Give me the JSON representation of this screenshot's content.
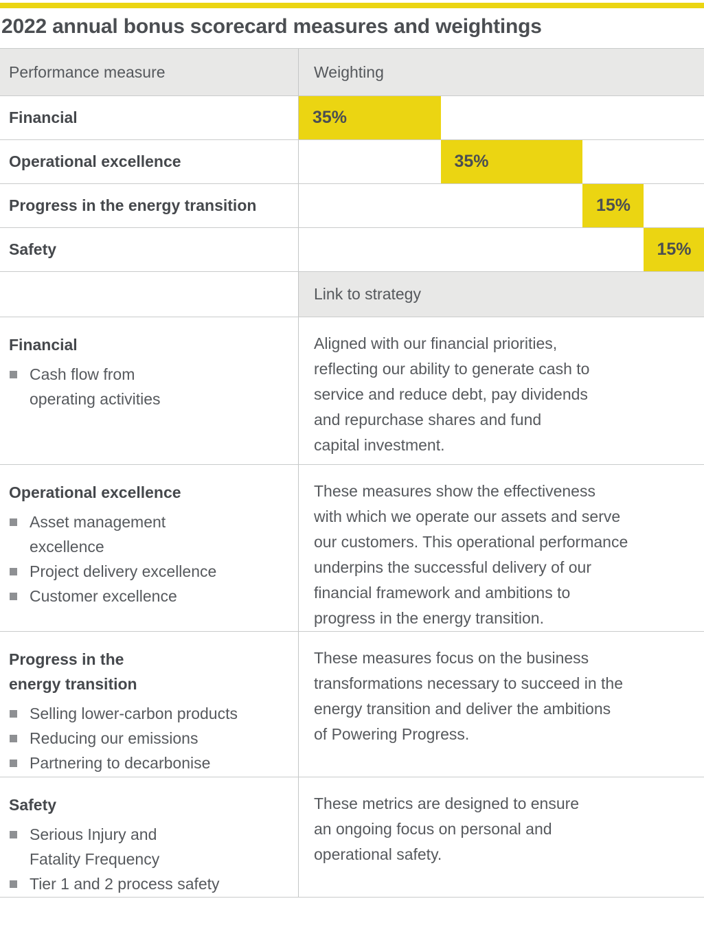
{
  "title": "2022 annual bonus scorecard measures and weightings",
  "colors": {
    "accent_yellow": "#EBD512",
    "dark_text": "#4B4E52",
    "body_text": "#56595D",
    "header_bg": "#E8E8E7",
    "grid_line": "#C9CBCB",
    "bullet_gray": "#8E9093"
  },
  "table": {
    "col1_header": "Performance measure",
    "col2_header": "Weighting",
    "weighting_rows": [
      {
        "label": "Financial",
        "value": "35%"
      },
      {
        "label": "Operational excellence",
        "value": "35%"
      },
      {
        "label": "Progress in the energy transition",
        "value": "15%"
      },
      {
        "label": "Safety",
        "value": "15%"
      }
    ],
    "strategy_header": "Link to strategy",
    "strategy_rows": [
      {
        "heading": "Financial",
        "bullets": [
          "Cash flow from\noperating activities"
        ],
        "strategy": "Aligned with our financial priorities,\nreflecting our ability to generate cash to\nservice and reduce debt, pay dividends\nand repurchase shares and fund\ncapital investment."
      },
      {
        "heading": "Operational excellence",
        "bullets": [
          "Asset management\nexcellence",
          "Project delivery excellence",
          "Customer excellence"
        ],
        "strategy": "These measures show the effectiveness\nwith which we operate our assets and serve\nour customers. This operational performance\nunderpins the successful delivery of our\nfinancial framework and ambitions to\nprogress in the energy transition."
      },
      {
        "heading": "Progress in the\nenergy transition",
        "bullets": [
          "Selling lower-carbon products",
          "Reducing our emissions",
          "Partnering to decarbonise"
        ],
        "strategy": "These measures focus on the business\ntransformations necessary to succeed in the\nenergy transition and deliver the ambitions\nof Powering Progress."
      },
      {
        "heading": "Safety",
        "bullets": [
          "Serious Injury and\nFatality Frequency",
          "Tier 1 and 2 process safety"
        ],
        "strategy": "These metrics are designed to ensure\nan ongoing focus on personal and\noperational safety."
      }
    ]
  },
  "chart_data": {
    "type": "bar",
    "title": "2022 annual bonus scorecard measures and weightings",
    "categories": [
      "Financial",
      "Operational excellence",
      "Progress in the energy transition",
      "Safety"
    ],
    "values": [
      35,
      35,
      15,
      15
    ],
    "unit": "%",
    "xlabel": "Weighting",
    "ylabel": "Performance measure",
    "xlim": [
      0,
      100
    ],
    "layout": "cascading horizontal bars; each bar starts at the cumulative offset of previous bars; value labels inside bars",
    "bar_color": "#EBD512",
    "legend": "none",
    "grid": "row separators only"
  }
}
